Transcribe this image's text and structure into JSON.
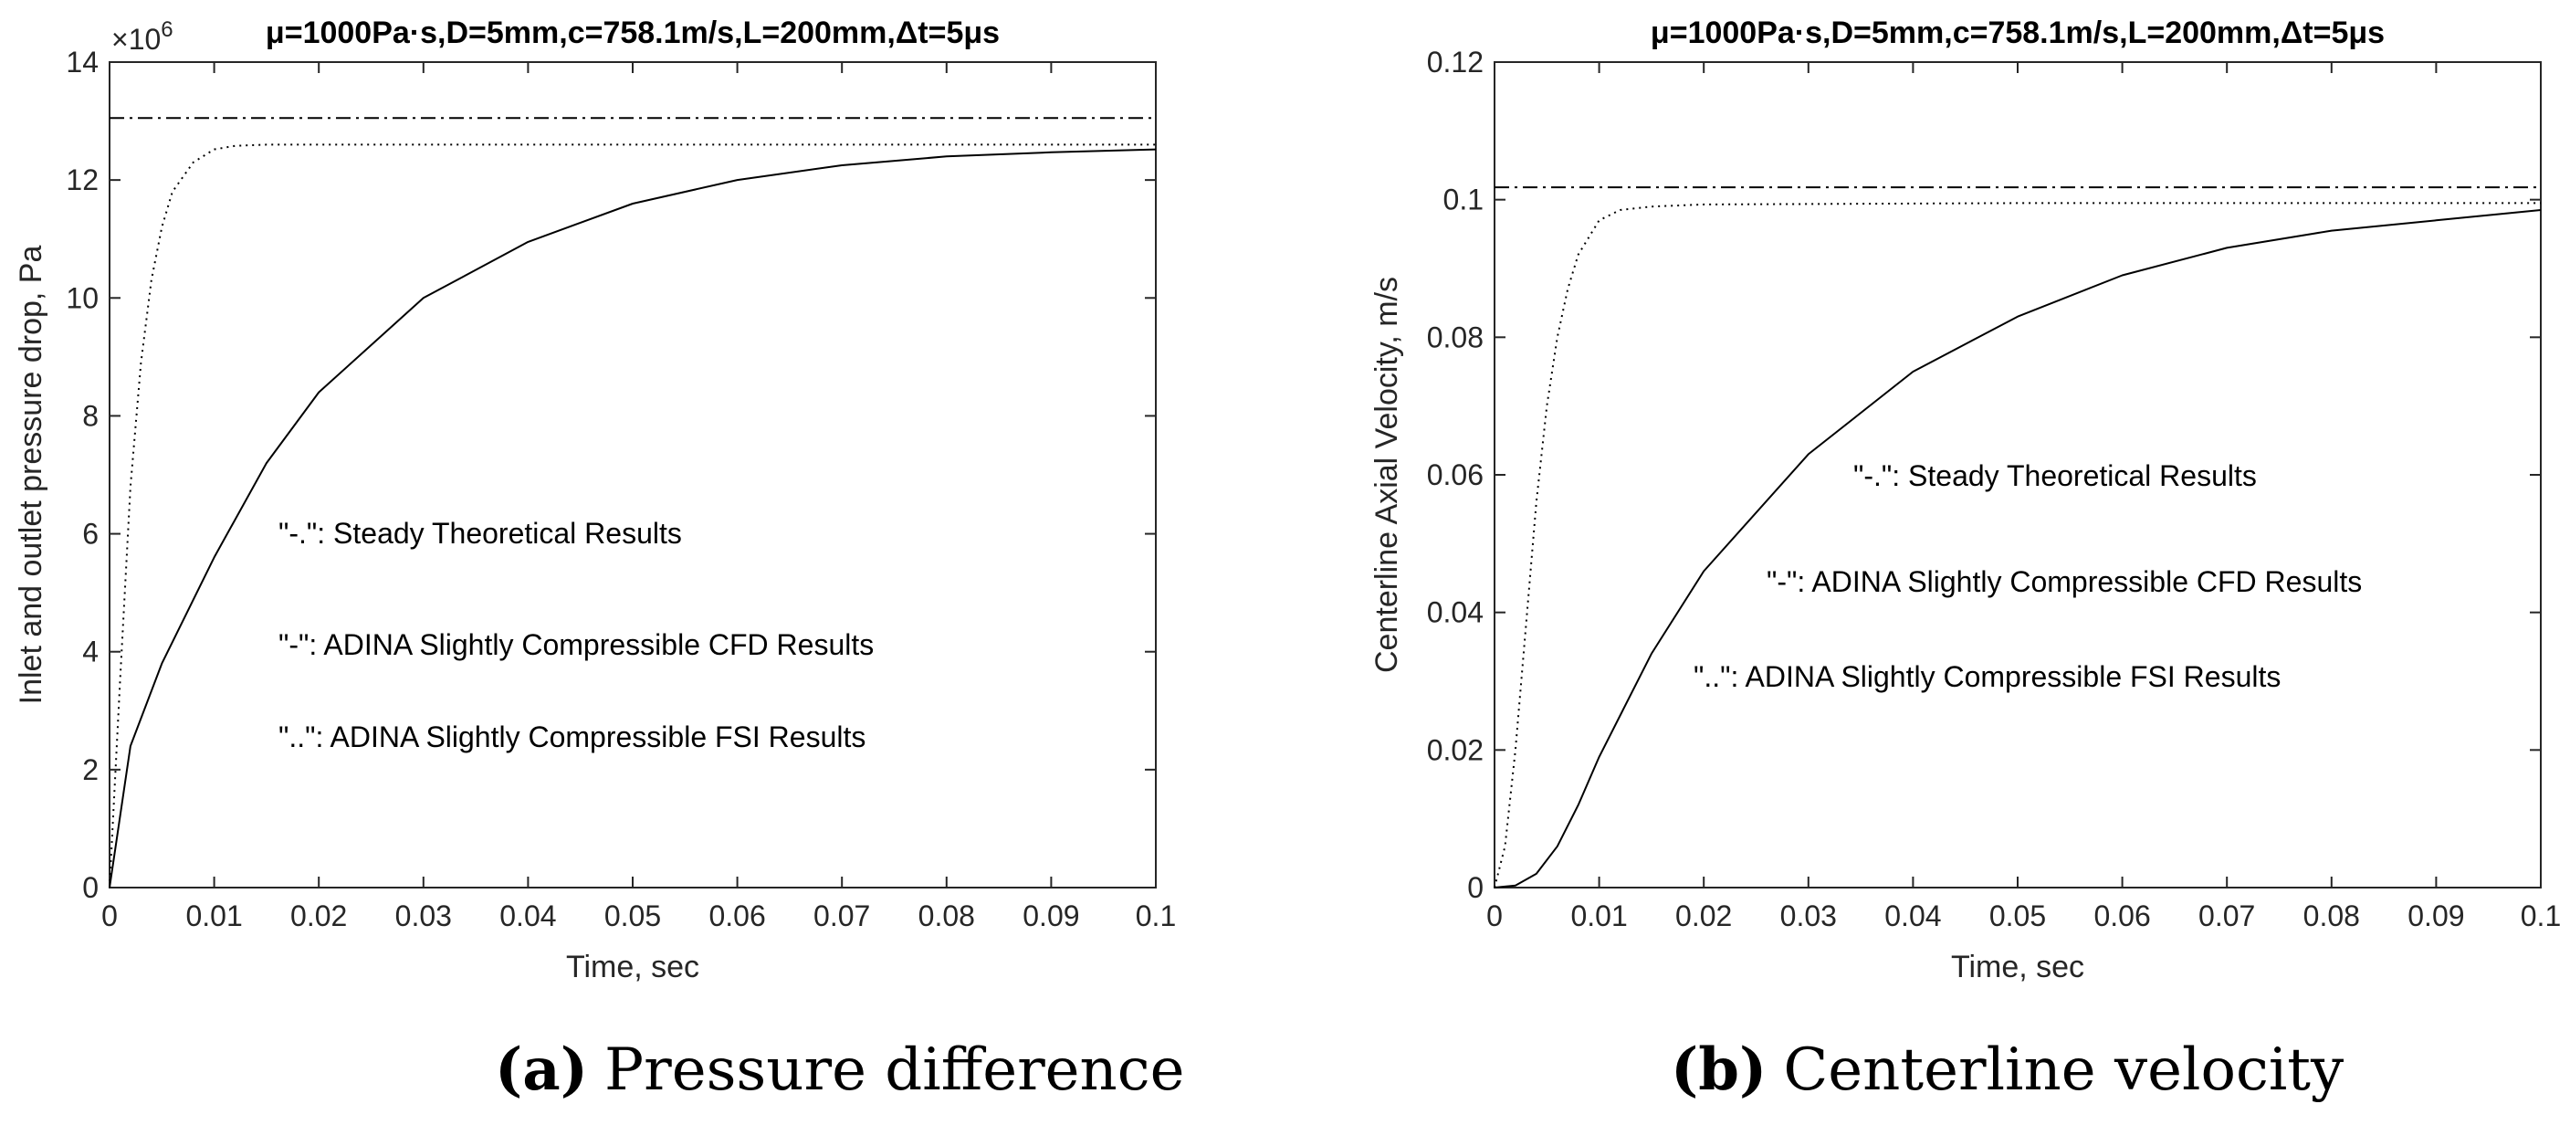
{
  "chart_data": [
    {
      "id": "a",
      "type": "line",
      "title": "μ=1000Pa·s,D=5mm,c=758.1m/s,L=200mm,Δt=5μs",
      "xlabel": "Time, sec",
      "ylabel": "Inlet and outlet pressure drop, Pa",
      "y_multiplier": "×10^6",
      "y_multiplier_base": "×10",
      "y_multiplier_exp": "6",
      "xlim": [
        0,
        0.1
      ],
      "ylim": [
        0,
        14
      ],
      "xticks": [
        "0",
        "0.01",
        "0.02",
        "0.03",
        "0.04",
        "0.05",
        "0.06",
        "0.07",
        "0.08",
        "0.09",
        "0.1"
      ],
      "yticks": [
        "0",
        "2",
        "4",
        "6",
        "8",
        "10",
        "12",
        "14"
      ],
      "caption_letter": "(a)",
      "caption_text": "Pressure difference",
      "annotations": [
        "\"-.\": Steady Theoretical Results",
        "\"-\": ADINA Slightly Compressible CFD Results",
        "\"..\": ADINA Slightly Compressible FSI Results"
      ],
      "series": [
        {
          "name": "Steady Theoretical Results",
          "style": "dashdot",
          "x": [
            0,
            0.1
          ],
          "y": [
            13.05,
            13.05
          ]
        },
        {
          "name": "ADINA Slightly Compressible CFD Results",
          "style": "solid",
          "x": [
            0,
            0.002,
            0.005,
            0.01,
            0.015,
            0.02,
            0.03,
            0.04,
            0.05,
            0.06,
            0.07,
            0.08,
            0.09,
            0.1
          ],
          "y": [
            0,
            2.4,
            3.8,
            5.6,
            7.2,
            8.4,
            10.0,
            10.95,
            11.6,
            12.0,
            12.25,
            12.4,
            12.47,
            12.52
          ]
        },
        {
          "name": "ADINA Slightly Compressible FSI Results",
          "style": "dotted",
          "x": [
            0,
            0.001,
            0.002,
            0.003,
            0.004,
            0.005,
            0.006,
            0.008,
            0.01,
            0.012,
            0.015,
            0.02,
            0.05,
            0.1
          ],
          "y": [
            0,
            3.5,
            6.8,
            8.9,
            10.3,
            11.2,
            11.8,
            12.3,
            12.52,
            12.58,
            12.6,
            12.6,
            12.6,
            12.6
          ]
        }
      ]
    },
    {
      "id": "b",
      "type": "line",
      "title": "μ=1000Pa·s,D=5mm,c=758.1m/s,L=200mm,Δt=5μs",
      "xlabel": "Time, sec",
      "ylabel": "Centerline Axial Velocity, m/s",
      "xlim": [
        0,
        0.1
      ],
      "ylim": [
        0,
        0.12
      ],
      "xticks": [
        "0",
        "0.01",
        "0.02",
        "0.03",
        "0.04",
        "0.05",
        "0.06",
        "0.07",
        "0.08",
        "0.09",
        "0.1"
      ],
      "yticks": [
        "0",
        "0.02",
        "0.04",
        "0.06",
        "0.08",
        "0.1",
        "0.12"
      ],
      "caption_letter": "(b)",
      "caption_text": "Centerline velocity",
      "annotations": [
        "\"-.\": Steady Theoretical Results",
        "\"-\": ADINA Slightly Compressible CFD Results",
        "\"..\": ADINA Slightly Compressible FSI Results"
      ],
      "series": [
        {
          "name": "Steady Theoretical Results",
          "style": "dashdot",
          "x": [
            0,
            0.1
          ],
          "y": [
            0.1018,
            0.1018
          ]
        },
        {
          "name": "ADINA Slightly Compressible CFD Results",
          "style": "solid",
          "x": [
            0,
            0.002,
            0.004,
            0.006,
            0.008,
            0.01,
            0.015,
            0.02,
            0.03,
            0.04,
            0.05,
            0.06,
            0.07,
            0.08,
            0.09,
            0.1
          ],
          "y": [
            0,
            0.0003,
            0.002,
            0.006,
            0.012,
            0.019,
            0.034,
            0.046,
            0.063,
            0.075,
            0.083,
            0.089,
            0.093,
            0.0955,
            0.097,
            0.0985
          ]
        },
        {
          "name": "ADINA Slightly Compressible FSI Results",
          "style": "dotted",
          "x": [
            0,
            0.001,
            0.002,
            0.003,
            0.004,
            0.005,
            0.006,
            0.007,
            0.008,
            0.01,
            0.012,
            0.015,
            0.02,
            0.05,
            0.1
          ],
          "y": [
            0,
            0.006,
            0.02,
            0.038,
            0.056,
            0.07,
            0.08,
            0.087,
            0.092,
            0.097,
            0.0985,
            0.099,
            0.0993,
            0.0995,
            0.0995
          ]
        }
      ]
    }
  ]
}
